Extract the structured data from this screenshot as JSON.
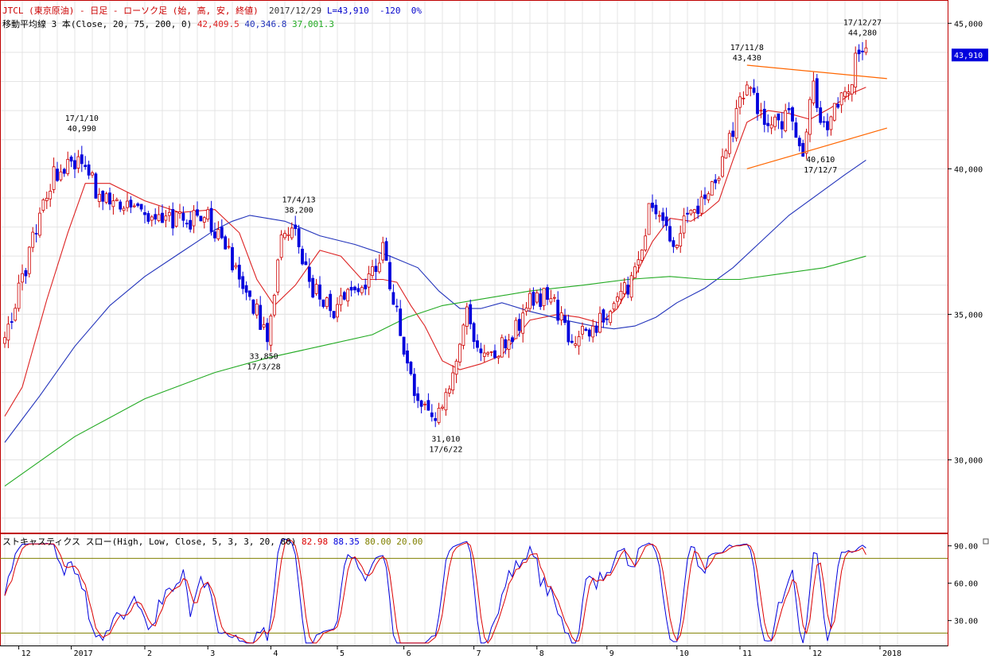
{
  "header": {
    "symbol_title": "JTCL (東京原油) - 日足 - ローソク足 (始, 高, 安, 終値)",
    "date": "2017/12/29",
    "last": "L=43,910",
    "change": "-120",
    "change_pct": "0%",
    "ma_label": "移動平均線 3 本(Close, 20, 75, 200, 0)",
    "ma_values": [
      "42,409.5",
      "40,346.8",
      "37,001.3"
    ],
    "stoch_label": "ストキャスティクス スロー(High, Low, Close, 5, 3, 3, 20, 80)",
    "stoch_values": [
      "82.98",
      "88.35",
      "80.00",
      "20.00"
    ]
  },
  "colors": {
    "title_red": "#cc0000",
    "ma20": "#dd2222",
    "ma75": "#2233bb",
    "ma200": "#22aa22",
    "candle_up": "#cc0000",
    "candle_down": "#0000dd",
    "trendline": "#ff6600",
    "stoch_k": "#0000dd",
    "stoch_d": "#dd0000",
    "stoch_ref": "#808000",
    "price_tag_bg": "#0000dd"
  },
  "chart_data": {
    "type": "candlestick",
    "price_axis": {
      "ylim": [
        27500,
        45800
      ],
      "ticks": [
        "45,000",
        "40,000",
        "35,000",
        "30,000"
      ],
      "tick_values": [
        45000,
        40000,
        35000,
        30000
      ]
    },
    "last_price_tag": "43,910",
    "last_price": 43910,
    "x_axis_labels": [
      "12",
      "2017",
      "2",
      "3",
      "4",
      "5",
      "6",
      "7",
      "8",
      "9",
      "10",
      "11",
      "12",
      "2018"
    ],
    "month_index": [
      4,
      19,
      40,
      58,
      76,
      95,
      114,
      134,
      152,
      172,
      192,
      210,
      230,
      250
    ],
    "total_days": 259,
    "start_price": 34100,
    "path_points": [
      [
        0,
        34100
      ],
      [
        8,
        37500
      ],
      [
        14,
        39900
      ],
      [
        23,
        40200
      ],
      [
        27,
        39000
      ],
      [
        42,
        38200
      ],
      [
        58,
        38300
      ],
      [
        64,
        37000
      ],
      [
        75,
        34300
      ],
      [
        79,
        37400
      ],
      [
        82,
        38000
      ],
      [
        88,
        35800
      ],
      [
        94,
        35200
      ],
      [
        99,
        35700
      ],
      [
        104,
        36300
      ],
      [
        108,
        37300
      ],
      [
        111,
        35500
      ],
      [
        117,
        32300
      ],
      [
        123,
        31200
      ],
      [
        127,
        32600
      ],
      [
        132,
        35000
      ],
      [
        136,
        33800
      ],
      [
        143,
        33900
      ],
      [
        150,
        35400
      ],
      [
        156,
        35800
      ],
      [
        161,
        34100
      ],
      [
        168,
        34600
      ],
      [
        174,
        35300
      ],
      [
        180,
        36300
      ],
      [
        185,
        39000
      ],
      [
        191,
        37500
      ],
      [
        197,
        38600
      ],
      [
        202,
        39300
      ],
      [
        206,
        40400
      ],
      [
        210,
        42300
      ],
      [
        213,
        42700
      ],
      [
        217,
        41500
      ],
      [
        224,
        41800
      ],
      [
        228,
        40700
      ],
      [
        231,
        42700
      ],
      [
        234,
        41400
      ],
      [
        237,
        42000
      ],
      [
        241,
        42700
      ],
      [
        244,
        44100
      ],
      [
        246,
        43910
      ]
    ],
    "annotations": [
      {
        "date": "17/1/10",
        "value": "40,990",
        "price": 40990,
        "day": 22,
        "pos": "above"
      },
      {
        "date": "17/3/28",
        "value": "33,850",
        "price": 33850,
        "day": 74,
        "pos": "below"
      },
      {
        "date": "17/4/13",
        "value": "38,200",
        "price": 38200,
        "day": 84,
        "pos": "above"
      },
      {
        "date": "17/6/22",
        "value": "31,010",
        "price": 31010,
        "day": 126,
        "pos": "below"
      },
      {
        "date": "17/11/8",
        "value": "43,430",
        "price": 43430,
        "day": 212,
        "pos": "above"
      },
      {
        "date": "17/12/7",
        "value": "40,610",
        "price": 40610,
        "day": 233,
        "pos": "below"
      },
      {
        "date": "17/12/27",
        "value": "44,280",
        "price": 44280,
        "day": 245,
        "pos": "above"
      }
    ],
    "moving_averages": [
      {
        "name": "20",
        "points": [
          [
            0,
            31500
          ],
          [
            5,
            32500
          ],
          [
            12,
            35500
          ],
          [
            18,
            37800
          ],
          [
            23,
            39500
          ],
          [
            30,
            39500
          ],
          [
            40,
            38900
          ],
          [
            50,
            38500
          ],
          [
            60,
            38600
          ],
          [
            67,
            37800
          ],
          [
            72,
            36200
          ],
          [
            77,
            35300
          ],
          [
            83,
            36000
          ],
          [
            90,
            37200
          ],
          [
            96,
            37000
          ],
          [
            102,
            36200
          ],
          [
            108,
            36200
          ],
          [
            112,
            36100
          ],
          [
            116,
            35300
          ],
          [
            120,
            34600
          ],
          [
            125,
            33400
          ],
          [
            130,
            33100
          ],
          [
            136,
            33300
          ],
          [
            142,
            33600
          ],
          [
            150,
            34800
          ],
          [
            158,
            35000
          ],
          [
            164,
            34900
          ],
          [
            170,
            34700
          ],
          [
            175,
            35200
          ],
          [
            180,
            36300
          ],
          [
            185,
            37500
          ],
          [
            190,
            38300
          ],
          [
            196,
            38200
          ],
          [
            200,
            38500
          ],
          [
            204,
            38900
          ],
          [
            208,
            40300
          ],
          [
            212,
            41600
          ],
          [
            218,
            42000
          ],
          [
            224,
            41900
          ],
          [
            230,
            41700
          ],
          [
            236,
            42100
          ],
          [
            242,
            42600
          ],
          [
            246,
            42800
          ]
        ]
      },
      {
        "name": "75",
        "points": [
          [
            0,
            30600
          ],
          [
            10,
            32200
          ],
          [
            20,
            33900
          ],
          [
            30,
            35300
          ],
          [
            40,
            36300
          ],
          [
            50,
            37100
          ],
          [
            55,
            37500
          ],
          [
            60,
            37900
          ],
          [
            65,
            38200
          ],
          [
            70,
            38400
          ],
          [
            80,
            38200
          ],
          [
            90,
            37700
          ],
          [
            100,
            37400
          ],
          [
            110,
            37000
          ],
          [
            118,
            36600
          ],
          [
            124,
            35800
          ],
          [
            130,
            35200
          ],
          [
            136,
            35200
          ],
          [
            142,
            35400
          ],
          [
            150,
            35100
          ],
          [
            160,
            34800
          ],
          [
            168,
            34600
          ],
          [
            174,
            34500
          ],
          [
            180,
            34600
          ],
          [
            186,
            34900
          ],
          [
            192,
            35400
          ],
          [
            200,
            35900
          ],
          [
            208,
            36600
          ],
          [
            216,
            37500
          ],
          [
            224,
            38400
          ],
          [
            232,
            39100
          ],
          [
            240,
            39800
          ],
          [
            246,
            40300
          ]
        ]
      },
      {
        "name": "200",
        "points": [
          [
            0,
            29100
          ],
          [
            20,
            30800
          ],
          [
            40,
            32100
          ],
          [
            60,
            33000
          ],
          [
            75,
            33500
          ],
          [
            90,
            33900
          ],
          [
            105,
            34300
          ],
          [
            115,
            34900
          ],
          [
            125,
            35300
          ],
          [
            135,
            35500
          ],
          [
            150,
            35800
          ],
          [
            165,
            36000
          ],
          [
            178,
            36200
          ],
          [
            190,
            36300
          ],
          [
            200,
            36200
          ],
          [
            210,
            36200
          ],
          [
            222,
            36400
          ],
          [
            234,
            36600
          ],
          [
            246,
            37000
          ]
        ]
      }
    ],
    "trendlines": [
      {
        "from": [
          212,
          43560
        ],
        "to": [
          252,
          43100
        ]
      },
      {
        "from": [
          212,
          40000
        ],
        "to": [
          252,
          41400
        ]
      }
    ],
    "stochastic": {
      "ylim": [
        10,
        100
      ],
      "ticks": [
        "90.00",
        "60.00",
        "30.00"
      ],
      "tick_values": [
        90,
        60,
        30
      ],
      "levels": [
        80,
        20
      ],
      "k_values": [
        82.98
      ],
      "d_values": [
        88.35
      ]
    }
  }
}
